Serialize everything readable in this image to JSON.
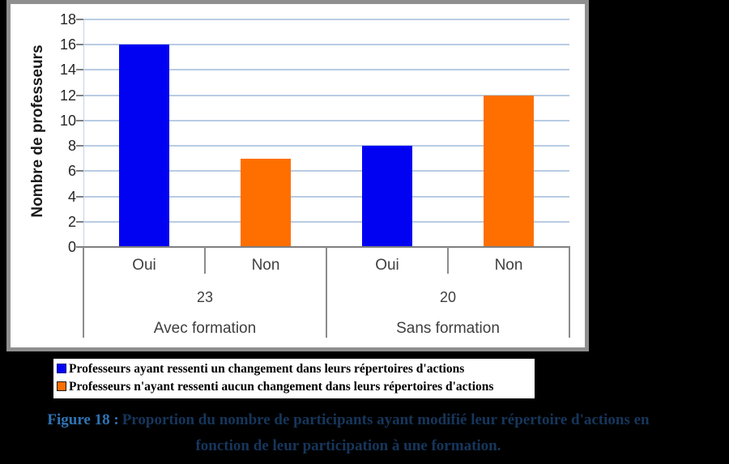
{
  "chart_data": {
    "type": "bar",
    "title": "",
    "xlabel": "",
    "ylabel": "Nombre de professeurs",
    "ylim": [
      0,
      18
    ],
    "yticks": [
      0,
      2,
      4,
      6,
      8,
      10,
      12,
      14,
      16,
      18
    ],
    "grid": true,
    "legend_position": "below-chart",
    "bar_labels": [
      "Oui",
      "Non",
      "Oui",
      "Non"
    ],
    "bar_values": [
      16,
      7,
      8,
      12
    ],
    "bar_series": [
      0,
      1,
      0,
      1
    ],
    "groups": [
      {
        "label": "Avec formation",
        "count": "23",
        "categories": [
          "Oui",
          "Non"
        ],
        "values": [
          16,
          7
        ]
      },
      {
        "label": "Sans formation",
        "count": "20",
        "categories": [
          "Oui",
          "Non"
        ],
        "values": [
          8,
          12
        ]
      }
    ],
    "series": [
      {
        "name": "Professeurs ayant ressenti un changement dans leurs répertoires d'actions",
        "color": "#0202F2"
      },
      {
        "name": "Professeurs n'ayant ressenti aucun changement dans leurs répertoires d'actions",
        "color": "#FF6F00"
      }
    ],
    "colors": {
      "gridline": "#B8CCE4",
      "axis_line": "#7F7F7F",
      "bar_blue": "#0202F2",
      "bar_orange": "#FF6F00"
    }
  },
  "caption": {
    "figure_label": "Figure 18 :",
    "line1": "Proportion du nombre de participants ayant modifié leur répertoire d'actions en",
    "line2": "fonction de leur participation à une formation.",
    "figure_label_color": "#2E74B5",
    "text_color": "#16365C"
  }
}
